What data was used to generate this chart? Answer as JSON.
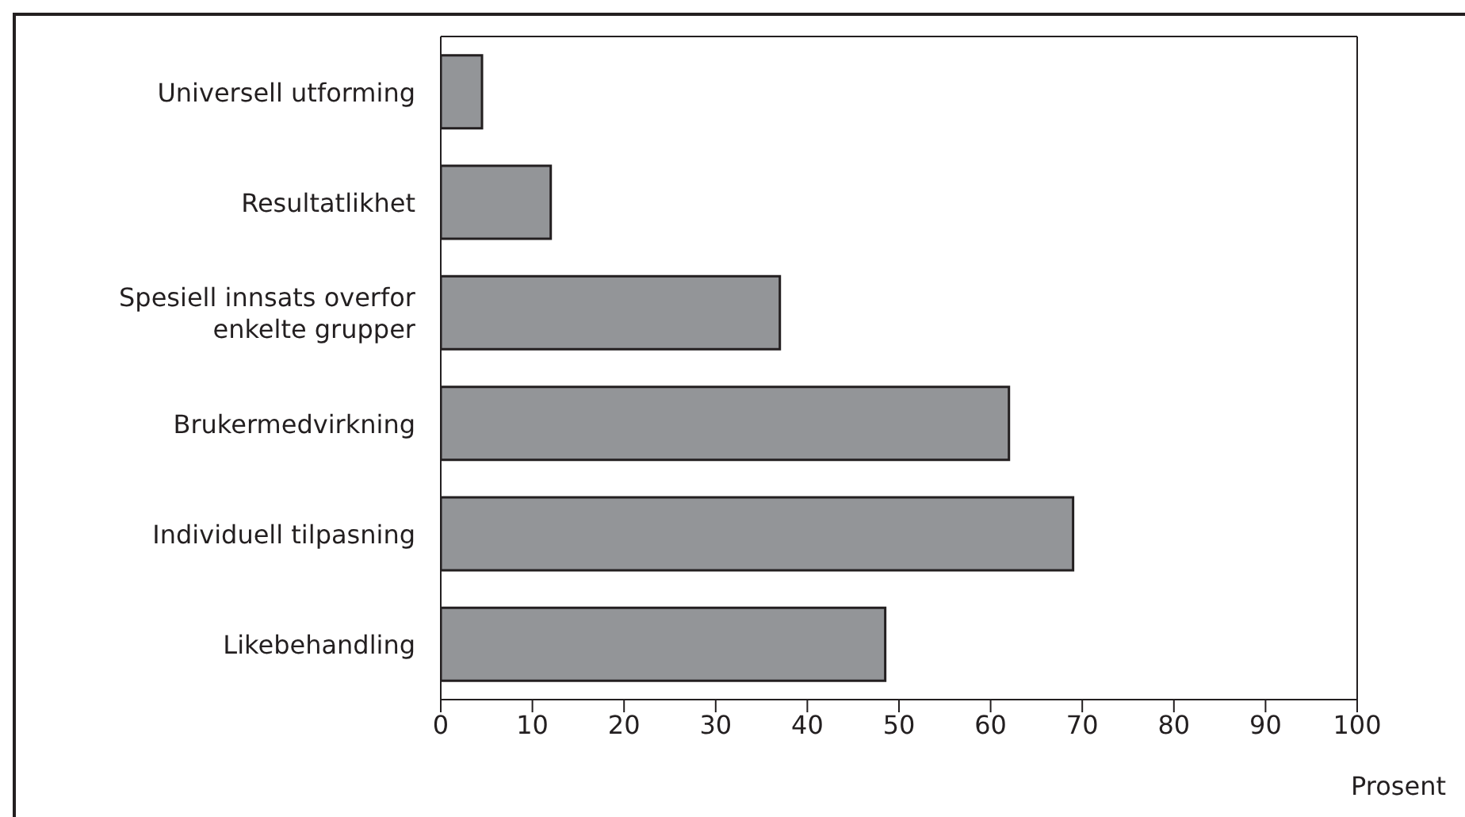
{
  "chart_data": {
    "type": "bar",
    "orientation": "horizontal",
    "xlabel": "Prosent",
    "categories": [
      "Universell utforming",
      "Resultatlikhet",
      "Spesiell innsats overfor enkelte grupper",
      "Brukermedvirkning",
      "Individuell tilpasning",
      "Likebehandling"
    ],
    "values": [
      4.5,
      12,
      37,
      62,
      69,
      48.5
    ],
    "color": "#939598",
    "xlim": [
      0,
      100
    ],
    "xticks": [
      0,
      10,
      20,
      30,
      40,
      50,
      60,
      70,
      80,
      90,
      100
    ],
    "grid": false
  }
}
